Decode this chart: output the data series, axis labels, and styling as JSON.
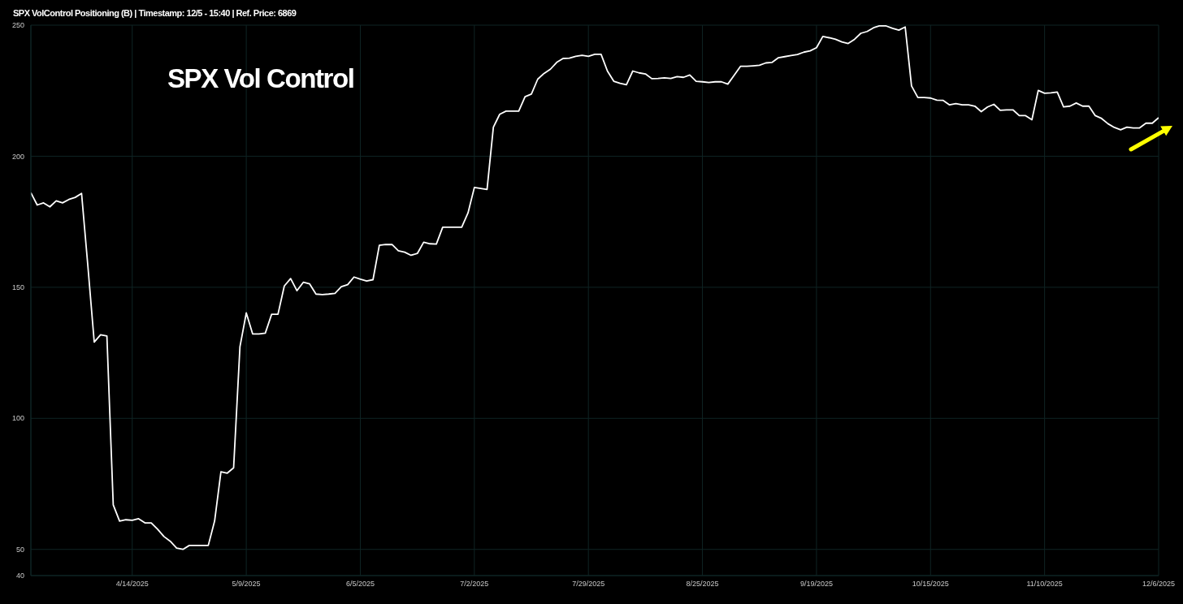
{
  "chart_data": {
    "type": "line",
    "title": "SPX VolControl Positioning (B) | Timestamp: 12/5 - 15:40 | Ref. Price: 6869",
    "annotations": [
      "SPX Vol Control"
    ],
    "categories": [
      null,
      null,
      null,
      null,
      null,
      null,
      null,
      null,
      null,
      null,
      null,
      null,
      null,
      null,
      null,
      null,
      "4/14/2025",
      null,
      null,
      null,
      null,
      null,
      null,
      null,
      null,
      null,
      null,
      null,
      null,
      null,
      null,
      null,
      null,
      null,
      "5/9/2025",
      null,
      null,
      null,
      null,
      null,
      null,
      null,
      null,
      null,
      null,
      null,
      null,
      null,
      null,
      null,
      null,
      null,
      "6/5/2025",
      null,
      null,
      null,
      null,
      null,
      null,
      null,
      null,
      null,
      null,
      null,
      null,
      null,
      null,
      null,
      null,
      null,
      "7/2/2025",
      null,
      null,
      null,
      null,
      null,
      null,
      null,
      null,
      null,
      null,
      null,
      null,
      null,
      null,
      null,
      null,
      null,
      "7/29/2025",
      null,
      null,
      null,
      null,
      null,
      null,
      null,
      null,
      null,
      null,
      null,
      null,
      null,
      null,
      null,
      null,
      null,
      "8/25/2025",
      null,
      null,
      null,
      null,
      null,
      null,
      null,
      null,
      null,
      null,
      null,
      null,
      null,
      null,
      null,
      null,
      null,
      "9/19/2025",
      null,
      null,
      null,
      null,
      null,
      null,
      null,
      null,
      null,
      null,
      null,
      null,
      null,
      null,
      null,
      null,
      null,
      "10/15/2025",
      null,
      null,
      null,
      null,
      null,
      null,
      null,
      null,
      null,
      null,
      null,
      null,
      null,
      null,
      null,
      null,
      null,
      "11/10/2025",
      null,
      null,
      null,
      null,
      null,
      null,
      null,
      null,
      null,
      null,
      null,
      null,
      null,
      null,
      null,
      null,
      null,
      "12/6/2025"
    ],
    "series": [
      {
        "color": "#ffffff",
        "values": [
          186.1,
          181.4,
          182.2,
          180.7,
          183.0,
          182.2,
          183.5,
          184.3,
          185.8,
          158.0,
          129.1,
          131.9,
          131.4,
          67.0,
          60.8,
          61.3,
          61.1,
          61.7,
          60.1,
          60.1,
          57.7,
          54.9,
          53.1,
          50.5,
          50.0,
          51.5,
          51.5,
          51.5,
          51.5,
          60.8,
          79.6,
          79.1,
          81.1,
          127.3,
          140.2,
          132.2,
          132.2,
          132.5,
          139.7,
          139.7,
          150.5,
          153.3,
          148.7,
          151.9,
          151.3,
          147.4,
          147.2,
          147.4,
          147.7,
          150.2,
          151.0,
          153.9,
          153.1,
          152.4,
          152.9,
          166.0,
          166.3,
          166.3,
          163.9,
          163.4,
          162.2,
          162.9,
          167.2,
          166.6,
          166.5,
          172.9,
          172.9,
          172.9,
          172.9,
          178.4,
          188.1,
          187.7,
          187.3,
          211.1,
          216.0,
          217.2,
          217.2,
          217.2,
          222.7,
          223.7,
          229.4,
          231.6,
          233.2,
          235.8,
          237.3,
          237.4,
          238.1,
          238.5,
          238.1,
          238.9,
          238.9,
          232.5,
          228.6,
          227.8,
          227.3,
          232.5,
          231.8,
          231.4,
          229.6,
          229.7,
          229.9,
          229.7,
          230.4,
          230.1,
          231.0,
          228.6,
          228.4,
          228.1,
          228.4,
          228.4,
          227.5,
          230.9,
          234.3,
          234.3,
          234.5,
          234.7,
          235.6,
          235.8,
          237.6,
          238.0,
          238.4,
          238.8,
          239.7,
          240.2,
          241.4,
          245.7,
          245.2,
          244.6,
          243.6,
          243.0,
          244.6,
          246.9,
          247.6,
          249.0,
          249.8,
          249.7,
          248.8,
          248.1,
          249.3,
          226.8,
          222.4,
          222.4,
          222.2,
          221.4,
          221.3,
          219.6,
          220.1,
          219.6,
          219.6,
          219.1,
          217.0,
          218.8,
          219.8,
          217.5,
          217.7,
          217.7,
          215.5,
          215.5,
          213.9,
          225.1,
          224.0,
          224.2,
          224.5,
          218.8,
          219.1,
          220.3,
          219.1,
          219.1,
          215.5,
          214.4,
          212.4,
          211.0,
          210.1,
          211.1,
          210.8,
          210.8,
          212.6,
          212.6,
          214.7
        ]
      }
    ],
    "ylim": [
      40,
      250
    ],
    "yticks": [
      40,
      50,
      100,
      150,
      200,
      250
    ],
    "grid": true
  }
}
